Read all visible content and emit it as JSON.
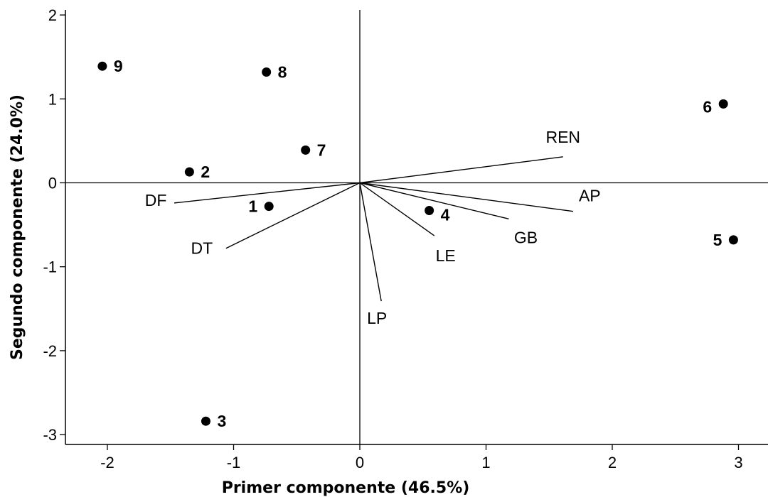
{
  "chart_data": {
    "type": "scatter",
    "title": "",
    "xlabel": "Primer componente (46.5%)",
    "ylabel": "Segundo componente (24.0%)",
    "xlim": [
      -2.4,
      3.3
    ],
    "ylim": [
      -3.1,
      2.1
    ],
    "x_ticks": [
      -2,
      -1,
      0,
      1,
      2,
      3
    ],
    "y_ticks": [
      2,
      1,
      0,
      -1,
      -2,
      -3
    ],
    "grid": false,
    "reference_lines": {
      "x": 0,
      "y": 0
    },
    "points": [
      {
        "label": "1",
        "x": -0.72,
        "y": -0.28,
        "label_side": "left"
      },
      {
        "label": "2",
        "x": -1.35,
        "y": 0.13,
        "label_side": "right"
      },
      {
        "label": "3",
        "x": -1.22,
        "y": -2.84,
        "label_side": "right"
      },
      {
        "label": "4",
        "x": 0.55,
        "y": -0.33,
        "label_side": "right-below"
      },
      {
        "label": "5",
        "x": 2.96,
        "y": -0.68,
        "label_side": "left"
      },
      {
        "label": "6",
        "x": 2.88,
        "y": 0.94,
        "label_side": "left-below"
      },
      {
        "label": "7",
        "x": -0.43,
        "y": 0.39,
        "label_side": "right"
      },
      {
        "label": "8",
        "x": -0.74,
        "y": 1.32,
        "label_side": "right"
      },
      {
        "label": "9",
        "x": -2.04,
        "y": 1.39,
        "label_side": "right"
      }
    ],
    "vectors": [
      {
        "label": "REN",
        "x": 1.61,
        "y": 0.31
      },
      {
        "label": "AP",
        "x": 1.69,
        "y": -0.34
      },
      {
        "label": "GB",
        "x": 1.18,
        "y": -0.43
      },
      {
        "label": "LE",
        "x": 0.59,
        "y": -0.63
      },
      {
        "label": "LP",
        "x": 0.17,
        "y": -1.41
      },
      {
        "label": "DT",
        "x": -1.06,
        "y": -0.78
      },
      {
        "label": "DF",
        "x": -1.47,
        "y": -0.24
      }
    ]
  }
}
